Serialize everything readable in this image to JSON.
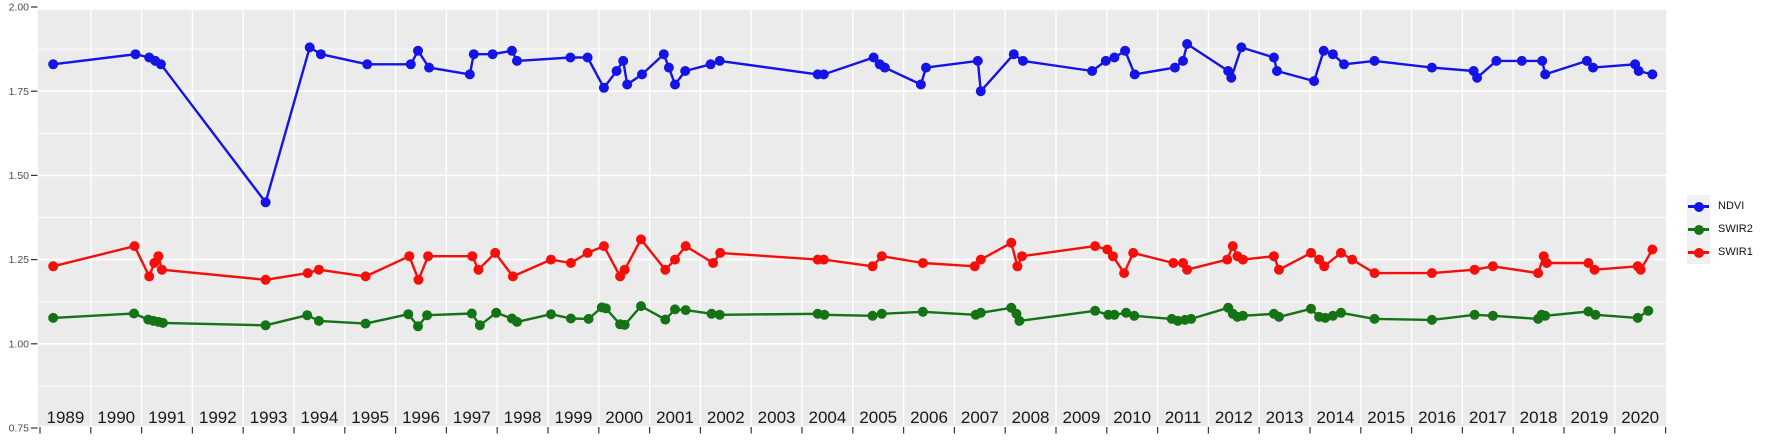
{
  "chart_data": {
    "type": "line",
    "title": "",
    "xlabel": "",
    "ylabel": "",
    "x_axis": {
      "range": [
        1989,
        2021
      ],
      "years": [
        "1989",
        "1990",
        "1991",
        "1992",
        "1993",
        "1994",
        "1995",
        "1996",
        "1997",
        "1998",
        "1999",
        "2000",
        "2001",
        "2002",
        "2003",
        "2004",
        "2005",
        "2006",
        "2007",
        "2008",
        "2009",
        "2010",
        "2011",
        "2012",
        "2013",
        "2014",
        "2015",
        "2016",
        "2017",
        "2018",
        "2019",
        "2020"
      ]
    },
    "y_axis": {
      "range": [
        0.75,
        2.0
      ],
      "tick_labels": [
        "2.00",
        "1.75",
        "1.50",
        "1.25",
        "1.00",
        "0.75"
      ],
      "major_values": [
        2.0,
        1.75,
        1.5,
        1.25,
        1.0,
        0.75
      ],
      "minor_values": [
        1.875,
        1.625,
        1.375,
        1.125,
        0.875
      ]
    },
    "legend": {
      "position": "right",
      "entries": [
        {
          "label": "NDVI",
          "color": "#1414E6"
        },
        {
          "label": "SWIR2",
          "color": "#147314"
        },
        {
          "label": "SWIR1",
          "color": "#F50F0A"
        }
      ]
    },
    "style": {
      "panel_bg": "#EBEBEB",
      "grid_color": "#FFFFFF",
      "tick_color": "#333333",
      "y_text_color": "#4D4D4D",
      "year_text_color": "#1A1A1A",
      "legend_key_bg": "#F0F0F0"
    },
    "series": [
      {
        "name": "NDVI",
        "color": "#1414E6",
        "points": [
          [
            1989.26,
            1.83
          ],
          [
            1990.88,
            1.86
          ],
          [
            1991.15,
            1.85
          ],
          [
            1991.27,
            1.84
          ],
          [
            1991.38,
            1.83
          ],
          [
            1993.44,
            1.42
          ],
          [
            1994.31,
            1.88
          ],
          [
            1994.53,
            1.86
          ],
          [
            1995.44,
            1.83
          ],
          [
            1996.3,
            1.83
          ],
          [
            1996.44,
            1.87
          ],
          [
            1996.66,
            1.82
          ],
          [
            1997.46,
            1.8
          ],
          [
            1997.54,
            1.86
          ],
          [
            1997.91,
            1.86
          ],
          [
            1998.29,
            1.87
          ],
          [
            1998.39,
            1.84
          ],
          [
            1999.44,
            1.85
          ],
          [
            1999.78,
            1.85
          ],
          [
            2000.1,
            1.76
          ],
          [
            2000.35,
            1.81
          ],
          [
            2000.48,
            1.84
          ],
          [
            2000.56,
            1.77
          ],
          [
            2000.85,
            1.8
          ],
          [
            2001.28,
            1.86
          ],
          [
            2001.38,
            1.82
          ],
          [
            2001.5,
            1.77
          ],
          [
            2001.7,
            1.81
          ],
          [
            2002.2,
            1.83
          ],
          [
            2002.38,
            1.84
          ],
          [
            2004.31,
            1.8
          ],
          [
            2004.43,
            1.8
          ],
          [
            2005.41,
            1.85
          ],
          [
            2005.53,
            1.83
          ],
          [
            2005.63,
            1.82
          ],
          [
            2006.34,
            1.77
          ],
          [
            2006.44,
            1.82
          ],
          [
            2007.46,
            1.84
          ],
          [
            2007.52,
            1.75
          ],
          [
            2008.17,
            1.86
          ],
          [
            2008.35,
            1.84
          ],
          [
            2009.71,
            1.81
          ],
          [
            2009.98,
            1.84
          ],
          [
            2010.15,
            1.85
          ],
          [
            2010.36,
            1.87
          ],
          [
            2010.55,
            1.8
          ],
          [
            2011.34,
            1.82
          ],
          [
            2011.5,
            1.84
          ],
          [
            2011.58,
            1.89
          ],
          [
            2012.39,
            1.81
          ],
          [
            2012.45,
            1.79
          ],
          [
            2012.65,
            1.88
          ],
          [
            2013.29,
            1.85
          ],
          [
            2013.35,
            1.81
          ],
          [
            2014.08,
            1.78
          ],
          [
            2014.27,
            1.87
          ],
          [
            2014.45,
            1.86
          ],
          [
            2014.67,
            1.83
          ],
          [
            2015.27,
            1.84
          ],
          [
            2016.4,
            1.82
          ],
          [
            2017.22,
            1.81
          ],
          [
            2017.29,
            1.79
          ],
          [
            2017.67,
            1.84
          ],
          [
            2018.17,
            1.84
          ],
          [
            2018.57,
            1.84
          ],
          [
            2018.63,
            1.8
          ],
          [
            2019.45,
            1.84
          ],
          [
            2019.57,
            1.82
          ],
          [
            2020.4,
            1.83
          ],
          [
            2020.47,
            1.81
          ],
          [
            2020.74,
            1.8
          ]
        ]
      },
      {
        "name": "SWIR2",
        "color": "#147314",
        "points": [
          [
            1989.26,
            1.077
          ],
          [
            1990.85,
            1.09
          ],
          [
            1991.13,
            1.072
          ],
          [
            1991.23,
            1.068
          ],
          [
            1991.33,
            1.065
          ],
          [
            1991.42,
            1.062
          ],
          [
            1993.44,
            1.055
          ],
          [
            1994.26,
            1.085
          ],
          [
            1994.49,
            1.068
          ],
          [
            1995.41,
            1.06
          ],
          [
            1996.25,
            1.088
          ],
          [
            1996.44,
            1.052
          ],
          [
            1996.62,
            1.085
          ],
          [
            1997.5,
            1.09
          ],
          [
            1997.66,
            1.055
          ],
          [
            1997.98,
            1.092
          ],
          [
            1998.29,
            1.075
          ],
          [
            1998.39,
            1.065
          ],
          [
            1999.06,
            1.088
          ],
          [
            1999.45,
            1.075
          ],
          [
            1999.8,
            1.074
          ],
          [
            2000.06,
            1.108
          ],
          [
            2000.14,
            1.105
          ],
          [
            2000.42,
            1.058
          ],
          [
            2000.51,
            1.056
          ],
          [
            2000.83,
            1.112
          ],
          [
            2001.31,
            1.072
          ],
          [
            2001.5,
            1.102
          ],
          [
            2001.71,
            1.1
          ],
          [
            2002.22,
            1.089
          ],
          [
            2002.38,
            1.086
          ],
          [
            2004.31,
            1.089
          ],
          [
            2004.44,
            1.086
          ],
          [
            2005.39,
            1.083
          ],
          [
            2005.57,
            1.089
          ],
          [
            2006.38,
            1.095
          ],
          [
            2007.42,
            1.086
          ],
          [
            2007.52,
            1.092
          ],
          [
            2008.12,
            1.107
          ],
          [
            2008.22,
            1.089
          ],
          [
            2008.28,
            1.068
          ],
          [
            2009.77,
            1.098
          ],
          [
            2010.03,
            1.086
          ],
          [
            2010.15,
            1.086
          ],
          [
            2010.38,
            1.092
          ],
          [
            2010.54,
            1.083
          ],
          [
            2011.28,
            1.074
          ],
          [
            2011.4,
            1.068
          ],
          [
            2011.54,
            1.071
          ],
          [
            2011.66,
            1.074
          ],
          [
            2012.39,
            1.107
          ],
          [
            2012.48,
            1.089
          ],
          [
            2012.57,
            1.08
          ],
          [
            2012.68,
            1.083
          ],
          [
            2013.29,
            1.089
          ],
          [
            2013.39,
            1.08
          ],
          [
            2014.02,
            1.104
          ],
          [
            2014.18,
            1.08
          ],
          [
            2014.3,
            1.077
          ],
          [
            2014.45,
            1.083
          ],
          [
            2014.61,
            1.092
          ],
          [
            2015.27,
            1.074
          ],
          [
            2016.4,
            1.071
          ],
          [
            2017.24,
            1.086
          ],
          [
            2017.6,
            1.083
          ],
          [
            2018.49,
            1.074
          ],
          [
            2018.56,
            1.086
          ],
          [
            2018.63,
            1.083
          ],
          [
            2019.48,
            1.096
          ],
          [
            2019.62,
            1.086
          ],
          [
            2020.45,
            1.077
          ],
          [
            2020.66,
            1.098
          ]
        ]
      },
      {
        "name": "SWIR1",
        "color": "#F50F0A",
        "points": [
          [
            1989.26,
            1.23
          ],
          [
            1990.86,
            1.29
          ],
          [
            1991.15,
            1.2
          ],
          [
            1991.25,
            1.24
          ],
          [
            1991.33,
            1.26
          ],
          [
            1991.4,
            1.22
          ],
          [
            1993.44,
            1.19
          ],
          [
            1994.27,
            1.21
          ],
          [
            1994.49,
            1.22
          ],
          [
            1995.41,
            1.2
          ],
          [
            1996.27,
            1.26
          ],
          [
            1996.45,
            1.19
          ],
          [
            1996.64,
            1.26
          ],
          [
            1997.51,
            1.26
          ],
          [
            1997.63,
            1.22
          ],
          [
            1997.96,
            1.27
          ],
          [
            1998.31,
            1.2
          ],
          [
            1999.06,
            1.25
          ],
          [
            1999.45,
            1.24
          ],
          [
            1999.78,
            1.27
          ],
          [
            2000.1,
            1.29
          ],
          [
            2000.42,
            1.2
          ],
          [
            2000.51,
            1.22
          ],
          [
            2000.83,
            1.31
          ],
          [
            2001.31,
            1.22
          ],
          [
            2001.5,
            1.25
          ],
          [
            2001.71,
            1.29
          ],
          [
            2002.25,
            1.24
          ],
          [
            2002.39,
            1.27
          ],
          [
            2004.31,
            1.25
          ],
          [
            2004.43,
            1.25
          ],
          [
            2005.39,
            1.23
          ],
          [
            2005.57,
            1.26
          ],
          [
            2006.38,
            1.24
          ],
          [
            2007.4,
            1.23
          ],
          [
            2007.52,
            1.25
          ],
          [
            2008.12,
            1.3
          ],
          [
            2008.24,
            1.23
          ],
          [
            2008.33,
            1.26
          ],
          [
            2009.77,
            1.29
          ],
          [
            2010.01,
            1.28
          ],
          [
            2010.12,
            1.26
          ],
          [
            2010.34,
            1.21
          ],
          [
            2010.52,
            1.27
          ],
          [
            2011.31,
            1.24
          ],
          [
            2011.5,
            1.24
          ],
          [
            2011.58,
            1.22
          ],
          [
            2012.37,
            1.25
          ],
          [
            2012.48,
            1.29
          ],
          [
            2012.57,
            1.26
          ],
          [
            2012.68,
            1.25
          ],
          [
            2013.29,
            1.26
          ],
          [
            2013.39,
            1.22
          ],
          [
            2014.02,
            1.27
          ],
          [
            2014.18,
            1.25
          ],
          [
            2014.28,
            1.23
          ],
          [
            2014.61,
            1.27
          ],
          [
            2014.83,
            1.25
          ],
          [
            2015.27,
            1.21
          ],
          [
            2016.4,
            1.21
          ],
          [
            2017.24,
            1.22
          ],
          [
            2017.6,
            1.23
          ],
          [
            2018.49,
            1.21
          ],
          [
            2018.6,
            1.26
          ],
          [
            2018.66,
            1.24
          ],
          [
            2019.48,
            1.24
          ],
          [
            2019.6,
            1.22
          ],
          [
            2020.45,
            1.23
          ],
          [
            2020.51,
            1.22
          ],
          [
            2020.74,
            1.28
          ]
        ]
      }
    ]
  }
}
